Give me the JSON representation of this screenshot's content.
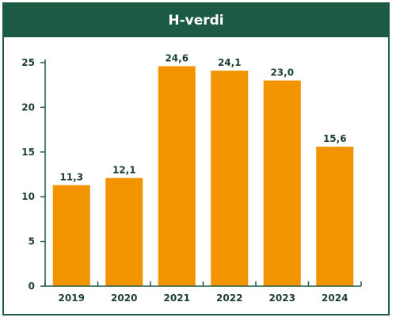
{
  "header": {
    "title": "H-verdi"
  },
  "colors": {
    "frame": "#1d5a43",
    "bar": "#f29400",
    "axis": "#1d5a43",
    "text": "#1d3f33"
  },
  "chart_data": {
    "type": "bar",
    "title": "H-verdi",
    "xlabel": "",
    "ylabel": "",
    "categories": [
      "2019",
      "2020",
      "2021",
      "2022",
      "2023",
      "2024"
    ],
    "values": [
      11.3,
      12.1,
      24.6,
      24.1,
      23.0,
      15.6
    ],
    "value_labels": [
      "11,3",
      "12,1",
      "24,6",
      "24,1",
      "23,0",
      "15,6"
    ],
    "y_ticks": [
      0,
      5,
      10,
      15,
      20,
      25
    ],
    "ylim": [
      0,
      25
    ],
    "grid": false,
    "legend": "none"
  }
}
